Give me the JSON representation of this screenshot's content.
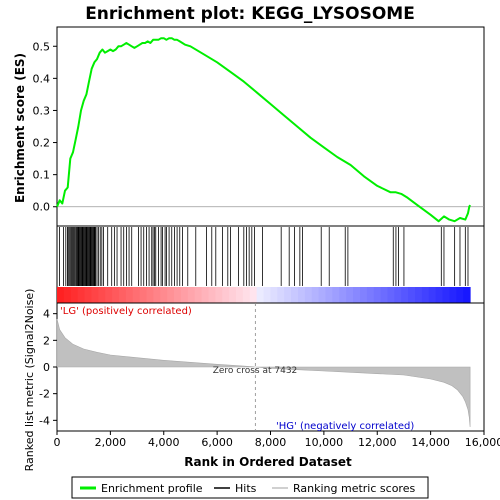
{
  "chart_data": {
    "type": "line",
    "title": "Enrichment plot: KEGG_LYSOSOME",
    "es_panel": {
      "ylabel": "Enrichment score (ES)",
      "ylim": [
        -0.06,
        0.56
      ],
      "yticks": [
        0.0,
        0.1,
        0.2,
        0.3,
        0.4,
        0.5
      ],
      "ytick_labels": [
        "0.0",
        "0.1",
        "0.2",
        "0.3",
        "0.4",
        "0.5"
      ],
      "series": [
        {
          "name": "Enrichment profile",
          "color": "#00ee00",
          "x": [
            0,
            100,
            200,
            300,
            400,
            500,
            600,
            700,
            800,
            900,
            1000,
            1100,
            1200,
            1300,
            1400,
            1500,
            1600,
            1700,
            1800,
            1900,
            2000,
            2100,
            2200,
            2300,
            2400,
            2500,
            2600,
            2700,
            2800,
            2900,
            3000,
            3100,
            3200,
            3300,
            3400,
            3500,
            3600,
            3700,
            3800,
            3900,
            4000,
            4100,
            4200,
            4300,
            4400,
            4500,
            4600,
            4700,
            4800,
            5000,
            5500,
            6000,
            6500,
            7000,
            7500,
            8000,
            8500,
            9000,
            9500,
            10000,
            10500,
            11000,
            11500,
            12000,
            12500,
            12700,
            12900,
            13100,
            13500,
            14000,
            14300,
            14500,
            14700,
            14900,
            15100,
            15300,
            15400,
            15450,
            15480
          ],
          "y": [
            0.0,
            0.02,
            0.01,
            0.05,
            0.06,
            0.15,
            0.17,
            0.21,
            0.25,
            0.3,
            0.33,
            0.35,
            0.39,
            0.43,
            0.45,
            0.46,
            0.48,
            0.49,
            0.48,
            0.485,
            0.49,
            0.485,
            0.49,
            0.5,
            0.5,
            0.505,
            0.51,
            0.505,
            0.5,
            0.495,
            0.5,
            0.505,
            0.51,
            0.51,
            0.515,
            0.51,
            0.52,
            0.52,
            0.52,
            0.525,
            0.525,
            0.52,
            0.525,
            0.525,
            0.52,
            0.52,
            0.515,
            0.51,
            0.505,
            0.5,
            0.475,
            0.45,
            0.42,
            0.39,
            0.355,
            0.32,
            0.285,
            0.25,
            0.215,
            0.185,
            0.155,
            0.13,
            0.095,
            0.065,
            0.045,
            0.045,
            0.04,
            0.03,
            0.005,
            -0.025,
            -0.045,
            -0.03,
            -0.04,
            -0.045,
            -0.035,
            -0.04,
            -0.02,
            0.0,
            0.005
          ]
        }
      ]
    },
    "hits_panel": {
      "name": "Hits",
      "hit_positions": [
        90,
        240,
        330,
        390,
        420,
        460,
        500,
        540,
        580,
        620,
        660,
        700,
        730,
        760,
        790,
        820,
        850,
        880,
        910,
        940,
        970,
        1000,
        1030,
        1060,
        1090,
        1120,
        1150,
        1180,
        1210,
        1240,
        1270,
        1300,
        1330,
        1360,
        1390,
        1420,
        1450,
        1500,
        1560,
        1620,
        1680,
        1740,
        1900,
        2050,
        2150,
        2250,
        2400,
        2500,
        2600,
        2700,
        2800,
        3050,
        3150,
        3250,
        3350,
        3450,
        3550,
        3600,
        3650,
        3700,
        3800,
        3900,
        3950,
        4050,
        4100,
        4200,
        4300,
        4400,
        4500,
        4600,
        4700,
        4900,
        5200,
        5600,
        5800,
        5950,
        6200,
        6400,
        6500,
        6800,
        7000,
        7100,
        7200,
        7300,
        7400,
        7700,
        8400,
        8700,
        8900,
        9100,
        9200,
        9900,
        10200,
        10800,
        10900,
        12600,
        12700,
        12800,
        13000,
        14400,
        14500,
        14900,
        15100,
        15300,
        15400
      ]
    },
    "metric_panel": {
      "name": "Ranking metric scores",
      "ylabel": "Ranked list metric (Signal2Noise)",
      "ylim": [
        -4.8,
        4.8
      ],
      "yticks": [
        -4,
        -2,
        0,
        2,
        4
      ],
      "ytick_labels": [
        "-4",
        "-2",
        "0",
        "2",
        "4"
      ],
      "x": [
        0,
        100,
        300,
        600,
        1000,
        1500,
        2000,
        3000,
        4000,
        5000,
        6000,
        7000,
        7432,
        8000,
        9000,
        10000,
        11000,
        12000,
        13000,
        13500,
        14000,
        14500,
        14800,
        15000,
        15200,
        15300,
        15400,
        15450,
        15480
      ],
      "y": [
        3.6,
        2.8,
        2.2,
        1.7,
        1.35,
        1.1,
        0.9,
        0.7,
        0.5,
        0.35,
        0.2,
        0.07,
        0.0,
        -0.1,
        -0.2,
        -0.3,
        -0.4,
        -0.5,
        -0.6,
        -0.75,
        -0.9,
        -1.15,
        -1.4,
        -1.7,
        -2.2,
        -2.6,
        -3.2,
        -3.8,
        -4.5
      ],
      "zero_cross_label": "Zero cross at 7432",
      "zero_cross_x": 7432,
      "pos_label": "'LG' (positively correlated)",
      "neg_label": "'HG' (negatively correlated)"
    },
    "xaxis": {
      "label": "Rank in Ordered Dataset",
      "xlim": [
        0,
        16000
      ],
      "xticks": [
        0,
        2000,
        4000,
        6000,
        8000,
        10000,
        12000,
        14000,
        16000
      ],
      "xtick_labels": [
        "0",
        "2,000",
        "4,000",
        "6,000",
        "8,000",
        "10,000",
        "12,000",
        "14,000",
        "16,000"
      ],
      "max_rank": 15480
    },
    "legend": {
      "placement": "bottom",
      "entries": [
        {
          "label": "Enrichment profile",
          "color": "#00ee00"
        },
        {
          "label": "Hits",
          "color": "#000000"
        },
        {
          "label": "Ranking metric scores",
          "color": "#c0c0c0"
        }
      ]
    }
  }
}
